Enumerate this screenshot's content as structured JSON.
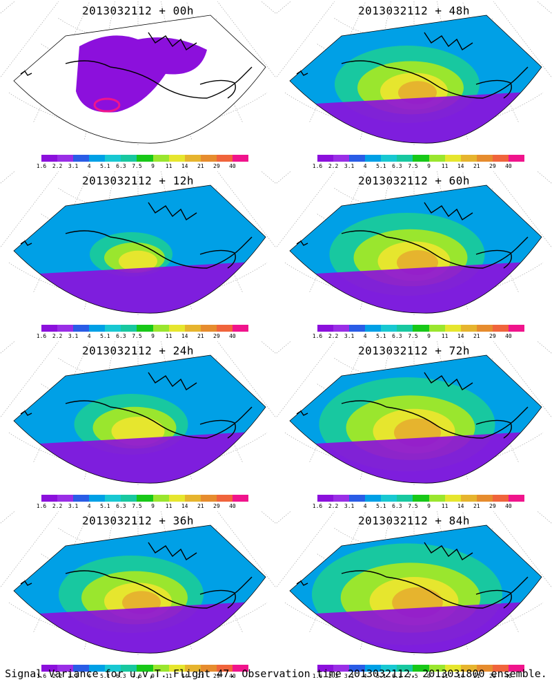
{
  "panels": [
    {
      "title": "2013032112 + 00h",
      "lead_hours": 0
    },
    {
      "title": "2013032112 + 48h",
      "lead_hours": 48
    },
    {
      "title": "2013032112 + 12h",
      "lead_hours": 12
    },
    {
      "title": "2013032112 + 60h",
      "lead_hours": 60
    },
    {
      "title": "2013032112 + 24h",
      "lead_hours": 24
    },
    {
      "title": "2013032112 + 72h",
      "lead_hours": 72
    },
    {
      "title": "2013032112 + 36h",
      "lead_hours": 36
    },
    {
      "title": "2013032112 + 84h",
      "lead_hours": 84
    }
  ],
  "colorbar": {
    "labels": [
      "1.6",
      "2.2",
      "3.1",
      "4",
      "5.1",
      "6.3",
      "7.5",
      "9",
      "11",
      "14",
      "21",
      "29",
      "40"
    ],
    "colors": [
      "#8c10dc",
      "#9a2ee6",
      "#2a5ce6",
      "#00a0e6",
      "#18c8d2",
      "#18c8a0",
      "#18c818",
      "#9ae62e",
      "#e6e62e",
      "#e6b42e",
      "#e68c2e",
      "#f0643c",
      "#f0148c"
    ]
  },
  "caption": "Signal Variance for u,v,T. Flight 47. Observation time 2013032112. 2013031800 ensemble."
}
